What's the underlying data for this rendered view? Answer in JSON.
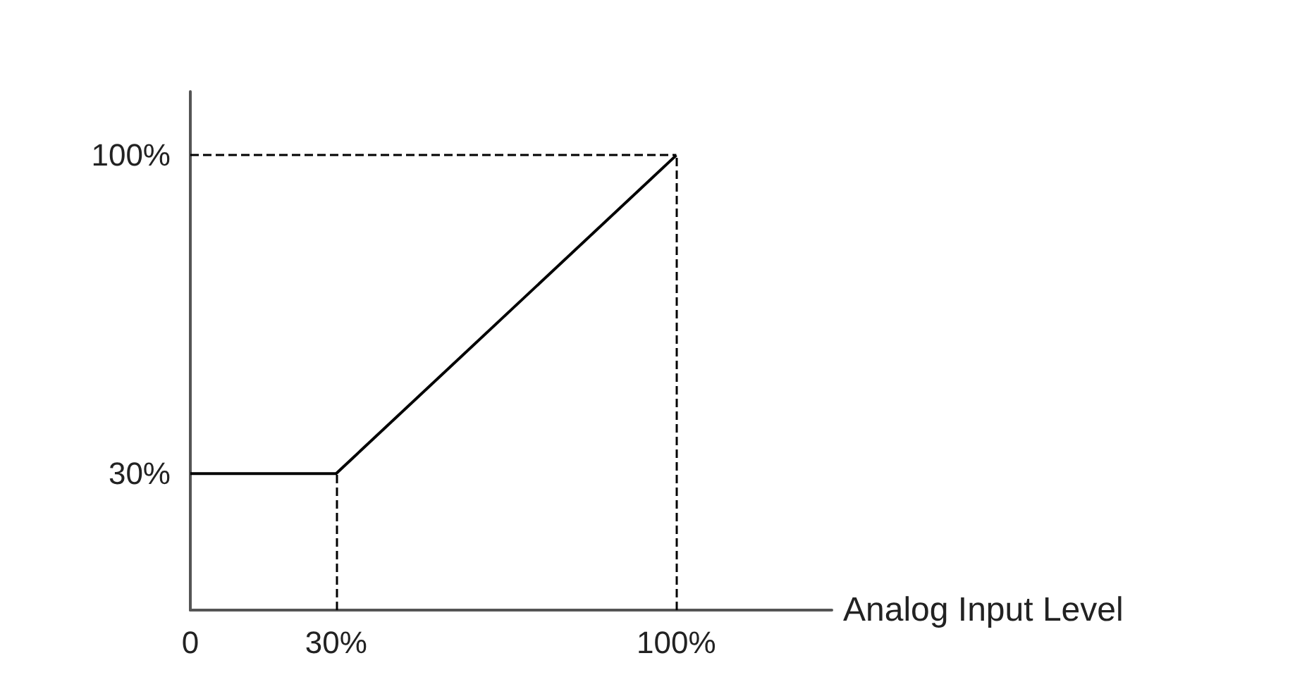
{
  "chart_data": {
    "type": "line",
    "xlabel": "Analog Input Level",
    "x": [
      0,
      30,
      100
    ],
    "series": [
      {
        "color": "#000000",
        "values": [
          30,
          30,
          100
        ]
      }
    ],
    "xlim": [
      0,
      132
    ],
    "ylim": [
      0,
      114
    ],
    "xticks": [
      0,
      {
        "value": 30,
        "label": "30%"
      },
      {
        "value": 100,
        "label": "100%"
      }
    ],
    "yticks": [
      {
        "value": 30,
        "label": "30%"
      },
      {
        "value": 100,
        "label": "100%"
      }
    ],
    "ref_lines": [
      {
        "axis": "x",
        "value": 30
      },
      {
        "axis": "x",
        "value": 100
      },
      {
        "axis": "y",
        "value": 100
      }
    ],
    "line_style": "solid",
    "marker": "none",
    "grid": false
  }
}
